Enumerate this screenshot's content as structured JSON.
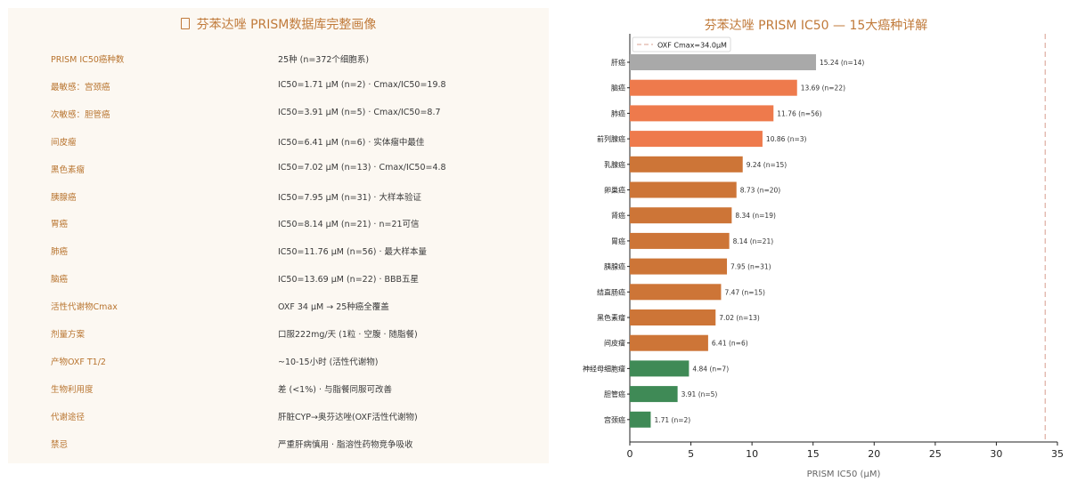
{
  "left_panel": {
    "title": "芬苯达唑 PRISM数据库完整画像",
    "icon": "document-icon",
    "rows": [
      {
        "label": "PRISM IC50癌种数",
        "value": "25种 (n=372个细胞系)"
      },
      {
        "label": "最敏感：宫颈癌",
        "value": "IC50=1.71 μM (n=2) ·  Cmax/IC50=19.8"
      },
      {
        "label": "次敏感：胆管癌",
        "value": "IC50=3.91 μM (n=5) ·  Cmax/IC50=8.7"
      },
      {
        "label": "间皮瘤",
        "value": "IC50=6.41 μM (n=6) ·  实体瘤中最佳"
      },
      {
        "label": "黑色素瘤",
        "value": "IC50=7.02 μM (n=13) ·  Cmax/IC50=4.8"
      },
      {
        "label": "胰腺癌",
        "value": "IC50=7.95 μM (n=31) ·  大样本验证"
      },
      {
        "label": "胃癌",
        "value": "IC50=8.14 μM (n=21) ·  n=21可信"
      },
      {
        "label": "肺癌",
        "value": "IC50=11.76 μM (n=56) ·  最大样本量"
      },
      {
        "label": "脑癌",
        "value": "IC50=13.69 μM (n=22) ·  BBB五星"
      },
      {
        "label": "活性代谢物Cmax",
        "value": "OXF 34 μM → 25种癌全覆盖"
      },
      {
        "label": "剂量方案",
        "value": "口服222mg/天 (1粒 · 空腹 · 随脂餐)"
      },
      {
        "label": "产物OXF T1/2",
        "value": "~10-15小时 (活性代谢物)"
      },
      {
        "label": "生物利用度",
        "value": "差 (<1%) ·  与脂餐同服可改善"
      },
      {
        "label": "代谢途径",
        "value": "肝脏CYP→奥芬达唑(OXF活性代谢物)"
      },
      {
        "label": "禁忌",
        "value": "严重肝病慎用 ·  脂溶性药物竞争吸收"
      }
    ]
  },
  "chart_data": {
    "type": "bar",
    "orientation": "horizontal",
    "title": "芬苯达唑 PRISM IC50 — 15大癌种详解",
    "xlabel": "PRISM IC50 (μM)",
    "xlim": [
      0,
      35
    ],
    "xticks": [
      0,
      5,
      10,
      15,
      20,
      25,
      30,
      35
    ],
    "reference_line": {
      "value": 34.0,
      "label": "OXF Cmax=34.0μM",
      "color": "#e0b4a8"
    },
    "legend_position": "top-left",
    "grid": false,
    "bars": [
      {
        "category": "肝癌",
        "value": 15.24,
        "label": "15.24 (n=14)",
        "color": "#a9a9a9"
      },
      {
        "category": "脑癌",
        "value": 13.69,
        "label": "13.69 (n=22)",
        "color": "#ee7a4c"
      },
      {
        "category": "肺癌",
        "value": 11.76,
        "label": "11.76 (n=56)",
        "color": "#ee7a4c"
      },
      {
        "category": "前列腺癌",
        "value": 10.86,
        "label": "10.86 (n=3)",
        "color": "#ee7a4c"
      },
      {
        "category": "乳腺癌",
        "value": 9.24,
        "label": "9.24 (n=15)",
        "color": "#cd7537"
      },
      {
        "category": "卵巢癌",
        "value": 8.73,
        "label": "8.73 (n=20)",
        "color": "#cd7537"
      },
      {
        "category": "肾癌",
        "value": 8.34,
        "label": "8.34 (n=19)",
        "color": "#cd7537"
      },
      {
        "category": "胃癌",
        "value": 8.14,
        "label": "8.14 (n=21)",
        "color": "#cd7537"
      },
      {
        "category": "胰腺癌",
        "value": 7.95,
        "label": "7.95 (n=31)",
        "color": "#cd7537"
      },
      {
        "category": "结直肠癌",
        "value": 7.47,
        "label": "7.47 (n=15)",
        "color": "#cd7537"
      },
      {
        "category": "黑色素瘤",
        "value": 7.02,
        "label": "7.02 (n=13)",
        "color": "#cd7537"
      },
      {
        "category": "间皮瘤",
        "value": 6.41,
        "label": "6.41 (n=6)",
        "color": "#cd7537"
      },
      {
        "category": "神经母细胞瘤",
        "value": 4.84,
        "label": "4.84 (n=7)",
        "color": "#3f8a56"
      },
      {
        "category": "胆管癌",
        "value": 3.91,
        "label": "3.91 (n=5)",
        "color": "#3f8a56"
      },
      {
        "category": "宫颈癌",
        "value": 1.71,
        "label": "1.71 (n=2)",
        "color": "#3f8a56"
      }
    ]
  }
}
